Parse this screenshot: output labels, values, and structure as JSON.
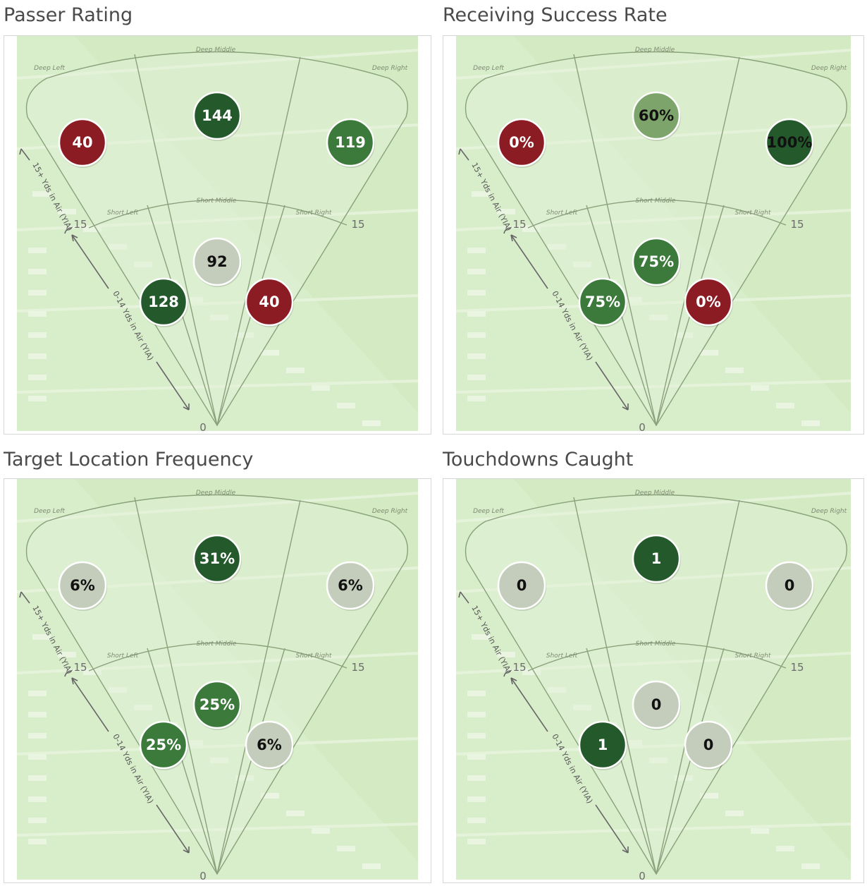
{
  "zone_labels": {
    "deep_left": "Deep Left",
    "deep_middle": "Deep Middle",
    "deep_right": "Deep Right",
    "short_left": "Short Left",
    "short_middle": "Short Middle",
    "short_right": "Short Right"
  },
  "yard_labels": {
    "fifteen": "15",
    "zero": "0"
  },
  "axis_labels": {
    "deep": "15+ Yds in Air (YIA)",
    "short": "0-14 Yds in Air (YIA)"
  },
  "colors": {
    "field_green": "#d3eac3",
    "good_dark": "#24592b",
    "good_medium": "#3c7a3c",
    "good_light": "#7da46b",
    "neutral": "#c4ccbb",
    "poor": "#8c1c24"
  },
  "chart_data": [
    {
      "type": "zone-bubble",
      "title": "Passer Rating",
      "zones": [
        {
          "zone": "Deep Left",
          "label": "40",
          "value": 40,
          "color": "#8c1c24",
          "text_color": "#ffffff"
        },
        {
          "zone": "Deep Middle",
          "label": "144",
          "value": 144,
          "color": "#24592b",
          "text_color": "#ffffff"
        },
        {
          "zone": "Deep Right",
          "label": "119",
          "value": 119,
          "color": "#3c7a3c",
          "text_color": "#ffffff"
        },
        {
          "zone": "Short Left",
          "label": "128",
          "value": 128,
          "color": "#24592b",
          "text_color": "#ffffff"
        },
        {
          "zone": "Short Middle",
          "label": "92",
          "value": 92,
          "color": "#c4ccbb",
          "text_color": "#111111"
        },
        {
          "zone": "Short Right",
          "label": "40",
          "value": 40,
          "color": "#8c1c24",
          "text_color": "#ffffff"
        }
      ]
    },
    {
      "type": "zone-bubble",
      "title": "Receiving Success Rate",
      "zones": [
        {
          "zone": "Deep Left",
          "label": "0%",
          "value": 0,
          "color": "#8c1c24",
          "text_color": "#ffffff"
        },
        {
          "zone": "Deep Middle",
          "label": "60%",
          "value": 60,
          "color": "#7da46b",
          "text_color": "#111111"
        },
        {
          "zone": "Deep Right",
          "label": "100%",
          "value": 100,
          "color": "#24592b",
          "text_color": "#111111"
        },
        {
          "zone": "Short Left",
          "label": "75%",
          "value": 75,
          "color": "#3c7a3c",
          "text_color": "#ffffff"
        },
        {
          "zone": "Short Middle",
          "label": "75%",
          "value": 75,
          "color": "#3c7a3c",
          "text_color": "#ffffff"
        },
        {
          "zone": "Short Right",
          "label": "0%",
          "value": 0,
          "color": "#8c1c24",
          "text_color": "#ffffff"
        }
      ]
    },
    {
      "type": "zone-bubble",
      "title": "Target Location Frequency",
      "zones": [
        {
          "zone": "Deep Left",
          "label": "6%",
          "value": 6,
          "color": "#c4ccbb",
          "text_color": "#111111"
        },
        {
          "zone": "Deep Middle",
          "label": "31%",
          "value": 31,
          "color": "#24592b",
          "text_color": "#ffffff"
        },
        {
          "zone": "Deep Right",
          "label": "6%",
          "value": 6,
          "color": "#c4ccbb",
          "text_color": "#111111"
        },
        {
          "zone": "Short Left",
          "label": "25%",
          "value": 25,
          "color": "#3c7a3c",
          "text_color": "#ffffff"
        },
        {
          "zone": "Short Middle",
          "label": "25%",
          "value": 25,
          "color": "#3c7a3c",
          "text_color": "#ffffff"
        },
        {
          "zone": "Short Right",
          "label": "6%",
          "value": 6,
          "color": "#c4ccbb",
          "text_color": "#111111"
        }
      ]
    },
    {
      "type": "zone-bubble",
      "title": "Touchdowns Caught",
      "zones": [
        {
          "zone": "Deep Left",
          "label": "0",
          "value": 0,
          "color": "#c4ccbb",
          "text_color": "#111111"
        },
        {
          "zone": "Deep Middle",
          "label": "1",
          "value": 1,
          "color": "#24592b",
          "text_color": "#ffffff"
        },
        {
          "zone": "Deep Right",
          "label": "0",
          "value": 0,
          "color": "#c4ccbb",
          "text_color": "#111111"
        },
        {
          "zone": "Short Left",
          "label": "1",
          "value": 1,
          "color": "#24592b",
          "text_color": "#ffffff"
        },
        {
          "zone": "Short Middle",
          "label": "0",
          "value": 0,
          "color": "#c4ccbb",
          "text_color": "#111111"
        },
        {
          "zone": "Short Right",
          "label": "0",
          "value": 0,
          "color": "#c4ccbb",
          "text_color": "#111111"
        }
      ]
    }
  ]
}
